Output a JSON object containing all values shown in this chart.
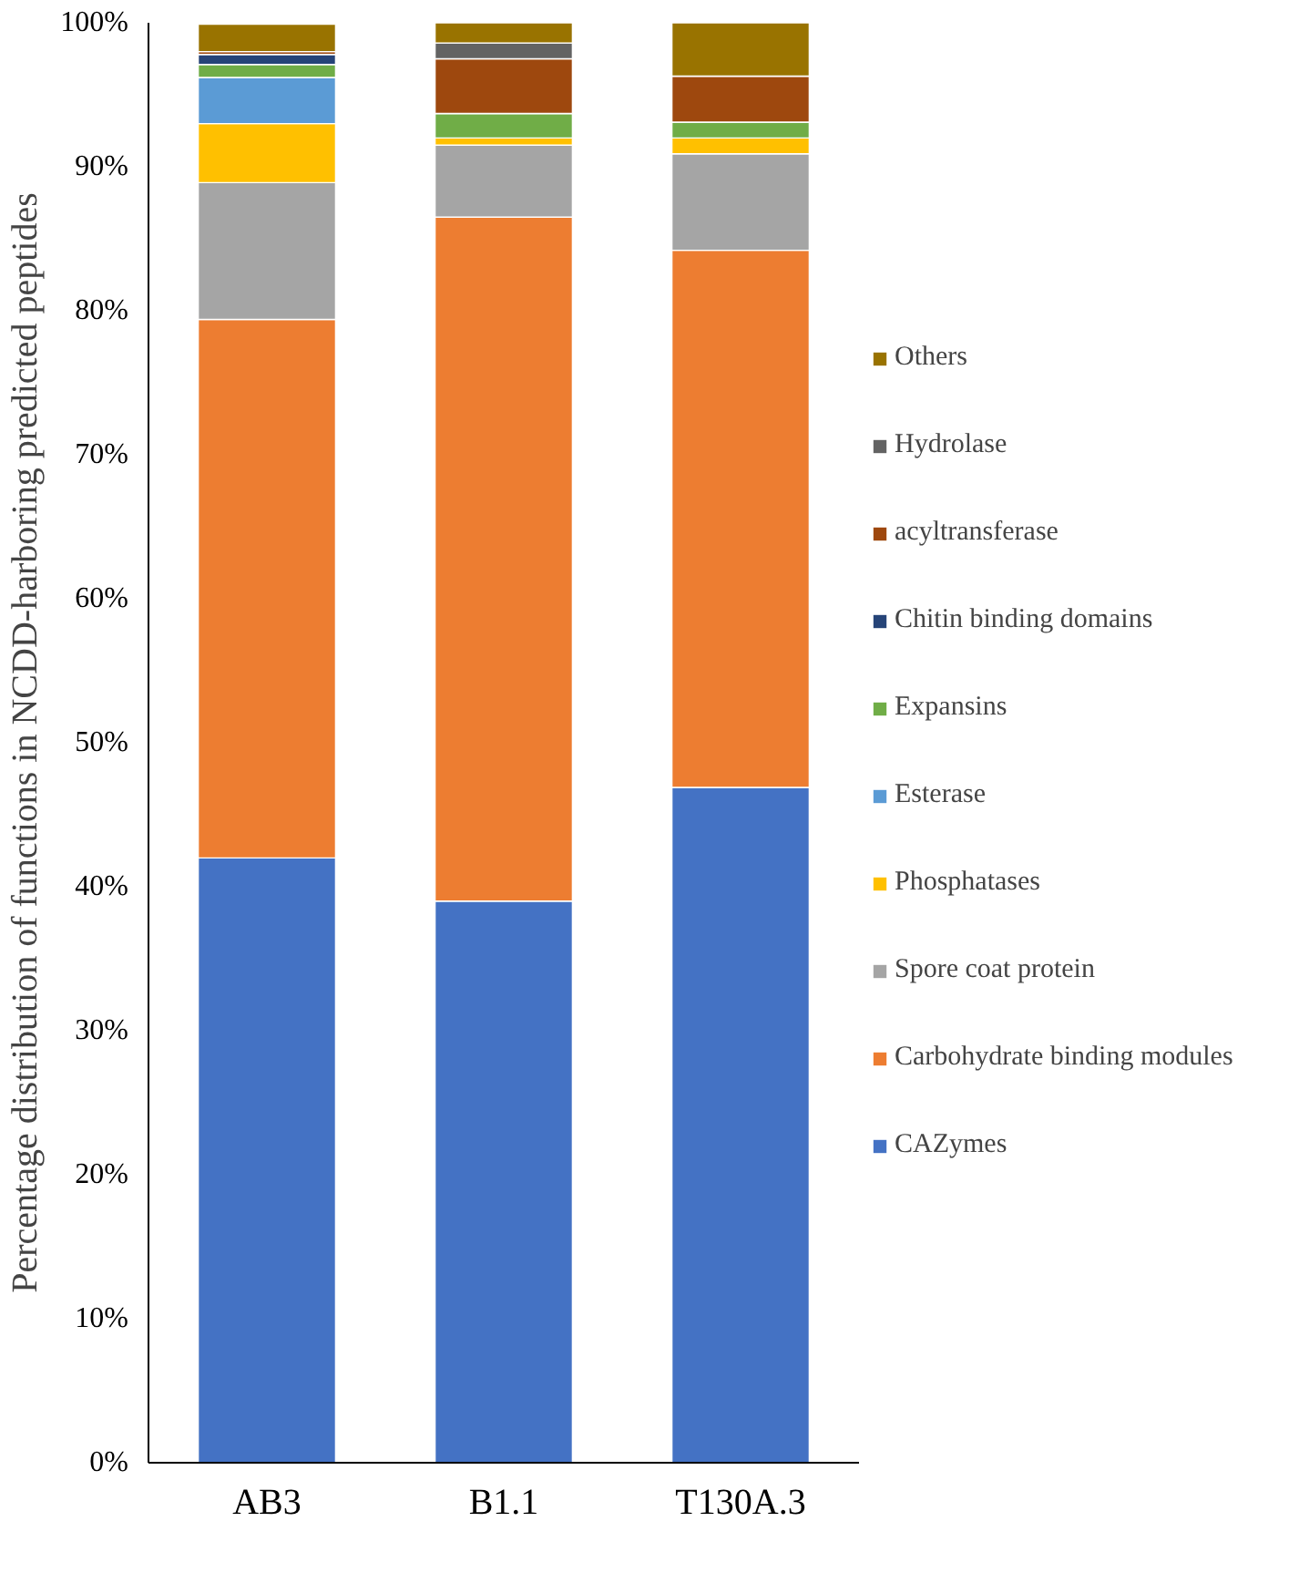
{
  "chart_data": {
    "type": "bar",
    "stacked": true,
    "ylabel": "Percentage distribution of functions in NCDD-harboring predicted peptides",
    "categories": [
      "AB3",
      "B1.1",
      "T130A.3"
    ],
    "ylim": [
      0,
      100
    ],
    "yticks": [
      {
        "value": 0,
        "label": "0%"
      },
      {
        "value": 10,
        "label": "10%"
      },
      {
        "value": 20,
        "label": "20%"
      },
      {
        "value": 30,
        "label": "30%"
      },
      {
        "value": 40,
        "label": "40%"
      },
      {
        "value": 50,
        "label": "50%"
      },
      {
        "value": 60,
        "label": "60%"
      },
      {
        "value": 70,
        "label": "70%"
      },
      {
        "value": 80,
        "label": "80%"
      },
      {
        "value": 90,
        "label": "90%"
      },
      {
        "value": 100,
        "label": "100%"
      }
    ],
    "grid": false,
    "legend": "right",
    "series": [
      {
        "name": "CAZymes",
        "color": "#4472c4",
        "values": [
          42.0,
          39.0,
          46.9
        ]
      },
      {
        "name": "Carbohydrate binding modules",
        "color": "#ed7d31",
        "values": [
          37.4,
          47.5,
          37.3
        ]
      },
      {
        "name": "Spore coat protein",
        "color": "#a5a5a5",
        "values": [
          9.5,
          5.0,
          6.7
        ]
      },
      {
        "name": "Phosphatases",
        "color": "#ffc000",
        "values": [
          4.1,
          0.5,
          1.1
        ]
      },
      {
        "name": "Esterase",
        "color": "#5b9bd5",
        "values": [
          3.2,
          0,
          0
        ]
      },
      {
        "name": "Expansins",
        "color": "#70ad47",
        "values": [
          0.9,
          1.7,
          1.1
        ]
      },
      {
        "name": "Chitin binding domains",
        "color": "#264478",
        "values": [
          0.7,
          0,
          0
        ]
      },
      {
        "name": "acyltransferase",
        "color": "#9e480e",
        "values": [
          0.2,
          3.8,
          3.2
        ]
      },
      {
        "name": "Hydrolase",
        "color": "#636363",
        "values": [
          null,
          1.1,
          0
        ]
      },
      {
        "name": "Others",
        "color": "#997300",
        "values": [
          1.9,
          1.4,
          3.7
        ]
      }
    ]
  }
}
